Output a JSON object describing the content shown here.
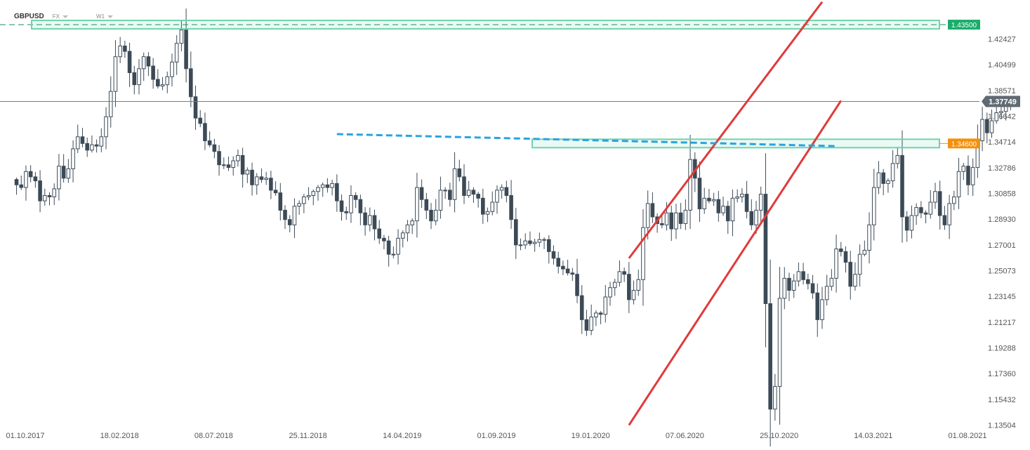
{
  "header": {
    "symbol": "GBPUSD",
    "market": "FX",
    "interval": "W1"
  },
  "chart_data": {
    "type": "candlestick",
    "y_ticks": [
      "1.42427",
      "1.40499",
      "1.38571",
      "1.36642",
      "1.34714",
      "1.32786",
      "1.30858",
      "1.28930",
      "1.27001",
      "1.25073",
      "1.23145",
      "1.21217",
      "1.19288",
      "1.17360",
      "1.15432",
      "1.13504"
    ],
    "x_ticks": [
      "01.10.2017",
      "18.02.2018",
      "08.07.2018",
      "25.11.2018",
      "14.04.2019",
      "01.09.2019",
      "19.01.2020",
      "07.06.2020",
      "25.10.2020",
      "14.03.2021",
      "01.08.2021"
    ],
    "ylim": [
      1.13504,
      1.44355
    ],
    "current_price": "1.37749",
    "levels": [
      {
        "label": "1.43500",
        "value": 1.435,
        "color": "#1aad6a"
      },
      {
        "label": "1.34600",
        "value": 1.346,
        "color": "#f5900c"
      }
    ],
    "trend_lines": [
      {
        "name": "channel-upper",
        "color": "#e03a3a",
        "points": [
          [
            "2020-03-16",
            1.26
          ],
          [
            "2020-12-28",
            1.452
          ]
        ]
      },
      {
        "name": "channel-lower",
        "color": "#e03a3a",
        "points": [
          [
            "2020-03-16",
            1.135
          ],
          [
            "2021-01-25",
            1.378
          ]
        ]
      },
      {
        "name": "dashed-resistance",
        "color": "#29a3e0",
        "points": [
          [
            "2019-01-07",
            1.353
          ],
          [
            "2021-01-18",
            1.344
          ]
        ]
      }
    ],
    "candles_close": [
      1.315,
      1.313,
      1.325,
      1.321,
      1.318,
      1.303,
      1.307,
      1.306,
      1.312,
      1.329,
      1.32,
      1.327,
      1.342,
      1.351,
      1.346,
      1.341,
      1.345,
      1.344,
      1.351,
      1.366,
      1.385,
      1.411,
      1.419,
      1.415,
      1.399,
      1.39,
      1.402,
      1.411,
      1.404,
      1.394,
      1.389,
      1.39,
      1.396,
      1.407,
      1.421,
      1.431,
      1.402,
      1.381,
      1.365,
      1.361,
      1.348,
      1.345,
      1.34,
      1.33,
      1.33,
      1.328,
      1.333,
      1.337,
      1.323,
      1.326,
      1.315,
      1.321,
      1.319,
      1.32,
      1.311,
      1.309,
      1.296,
      1.289,
      1.285,
      1.299,
      1.301,
      1.306,
      1.307,
      1.31,
      1.313,
      1.315,
      1.313,
      1.316,
      1.303,
      1.295,
      1.294,
      1.307,
      1.304,
      1.294,
      1.285,
      1.292,
      1.282,
      1.275,
      1.273,
      1.263,
      1.263,
      1.275,
      1.279,
      1.285,
      1.288,
      1.313,
      1.304,
      1.296,
      1.288,
      1.296,
      1.311,
      1.311,
      1.304,
      1.327,
      1.321,
      1.307,
      1.311,
      1.308,
      1.305,
      1.293,
      1.295,
      1.302,
      1.311,
      1.313,
      1.307,
      1.289,
      1.27,
      1.27,
      1.273,
      1.271,
      1.272,
      1.274,
      1.274,
      1.265,
      1.26,
      1.254,
      1.252,
      1.249,
      1.248,
      1.232,
      1.214,
      1.206,
      1.216,
      1.219,
      1.218,
      1.231,
      1.238,
      1.242,
      1.25,
      1.248,
      1.229,
      1.236,
      1.244,
      1.283,
      1.301,
      1.291,
      1.286,
      1.285,
      1.294,
      1.282,
      1.294,
      1.286,
      1.296,
      1.334,
      1.32,
      1.297,
      1.305,
      1.303,
      1.304,
      1.294,
      1.299,
      1.288,
      1.305,
      1.306,
      1.308,
      1.295,
      1.285,
      1.296,
      1.308,
      1.226,
      1.147,
      1.164,
      1.23,
      1.245,
      1.236,
      1.243,
      1.25,
      1.244,
      1.241,
      1.234,
      1.214,
      1.229,
      1.239,
      1.245,
      1.267,
      1.265,
      1.257,
      1.239,
      1.248,
      1.263,
      1.266,
      1.285,
      1.313,
      1.324,
      1.316,
      1.318,
      1.331,
      1.337,
      1.291,
      1.281,
      1.292,
      1.298,
      1.294,
      1.293,
      1.302,
      1.31,
      1.292,
      1.285,
      1.301,
      1.306,
      1.325,
      1.329,
      1.315,
      1.328,
      1.348,
      1.364,
      1.354,
      1.363,
      1.369,
      1.37,
      1.377,
      1.377
    ]
  }
}
